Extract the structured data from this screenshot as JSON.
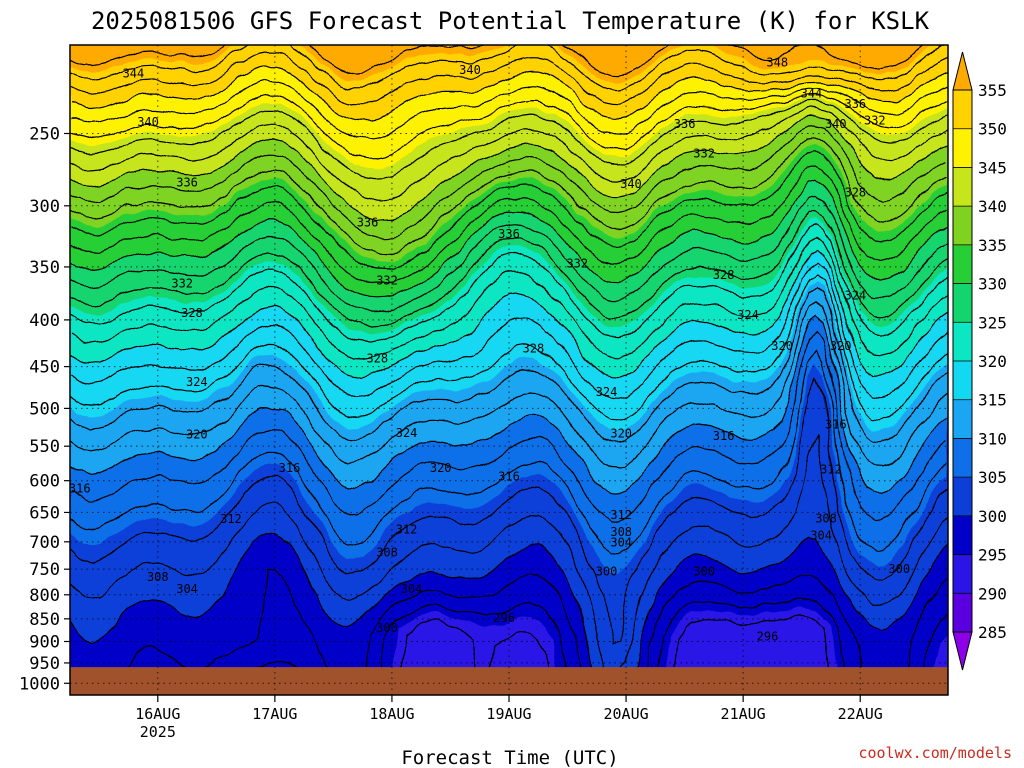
{
  "chart_data": {
    "type": "heatmap",
    "title": "2025081506 GFS Forecast Potential Temperature (K) for KSLK",
    "xlabel": "Forecast Time (UTC)",
    "ylabel": "",
    "credit": "coolwx.com/models",
    "x_ticks": [
      {
        "date": "2025-08-16",
        "label": "16AUG",
        "sublabel": "2025"
      },
      {
        "date": "2025-08-17",
        "label": "17AUG",
        "sublabel": ""
      },
      {
        "date": "2025-08-18",
        "label": "18AUG",
        "sublabel": ""
      },
      {
        "date": "2025-08-19",
        "label": "19AUG",
        "sublabel": ""
      },
      {
        "date": "2025-08-20",
        "label": "20AUG",
        "sublabel": ""
      },
      {
        "date": "2025-08-21",
        "label": "21AUG",
        "sublabel": ""
      },
      {
        "date": "2025-08-22",
        "label": "22AUG",
        "sublabel": ""
      }
    ],
    "xlim": [
      "2025-08-15T06",
      "2025-08-22T18"
    ],
    "y_ticks": [
      250,
      300,
      350,
      400,
      450,
      500,
      550,
      600,
      650,
      700,
      750,
      800,
      850,
      900,
      950,
      1000
    ],
    "ylim": [
      1000,
      200
    ],
    "y_scale": "log",
    "ground_color": "#a0522d",
    "grid": true,
    "colorbar": {
      "levels": [
        285,
        290,
        295,
        300,
        305,
        310,
        315,
        320,
        325,
        330,
        335,
        340,
        345,
        350,
        355
      ],
      "colors": [
        "#8b00e8",
        "#5a00e0",
        "#2a14e6",
        "#0000c8",
        "#0b3fd8",
        "#0f6fe8",
        "#1aa6f2",
        "#12d8f2",
        "#0de6c2",
        "#14d46e",
        "#27cf36",
        "#7fd320",
        "#c6e51a",
        "#fff200",
        "#ffd200",
        "#ffaa00"
      ],
      "extend": "both"
    },
    "contour_labels": [
      {
        "value": "344",
        "date": "2025-08-15T19",
        "p": 215
      },
      {
        "value": "340",
        "date": "2025-08-15T22",
        "p": 243
      },
      {
        "value": "336",
        "date": "2025-08-16T06",
        "p": 283
      },
      {
        "value": "332",
        "date": "2025-08-16T05",
        "p": 365
      },
      {
        "value": "328",
        "date": "2025-08-16T07",
        "p": 393
      },
      {
        "value": "324",
        "date": "2025-08-16T08",
        "p": 468
      },
      {
        "value": "320",
        "date": "2025-08-16T08",
        "p": 534
      },
      {
        "value": "316",
        "date": "2025-08-15T08",
        "p": 612
      },
      {
        "value": "312",
        "date": "2025-08-16T15",
        "p": 661
      },
      {
        "value": "308",
        "date": "2025-08-16T00",
        "p": 765
      },
      {
        "value": "304",
        "date": "2025-08-16T06",
        "p": 788
      },
      {
        "value": "316",
        "date": "2025-08-17T03",
        "p": 581
      },
      {
        "value": "336",
        "date": "2025-08-17T19",
        "p": 313
      },
      {
        "value": "332",
        "date": "2025-08-17T23",
        "p": 362
      },
      {
        "value": "328",
        "date": "2025-08-17T21",
        "p": 441
      },
      {
        "value": "324",
        "date": "2025-08-18T03",
        "p": 532
      },
      {
        "value": "320",
        "date": "2025-08-18T10",
        "p": 581
      },
      {
        "value": "312",
        "date": "2025-08-18T03",
        "p": 679
      },
      {
        "value": "308",
        "date": "2025-08-17T23",
        "p": 719
      },
      {
        "value": "304",
        "date": "2025-08-18T04",
        "p": 788
      },
      {
        "value": "300",
        "date": "2025-08-17T23",
        "p": 870
      },
      {
        "value": "296",
        "date": "2025-08-18T23",
        "p": 848
      },
      {
        "value": "340",
        "date": "2025-08-18T16",
        "p": 213
      },
      {
        "value": "336",
        "date": "2025-08-19T00",
        "p": 322
      },
      {
        "value": "328",
        "date": "2025-08-19T05",
        "p": 430
      },
      {
        "value": "332",
        "date": "2025-08-19T14",
        "p": 347
      },
      {
        "value": "324",
        "date": "2025-08-19T20",
        "p": 480
      },
      {
        "value": "316",
        "date": "2025-08-19T00",
        "p": 594
      },
      {
        "value": "320",
        "date": "2025-08-19T23",
        "p": 533
      },
      {
        "value": "300",
        "date": "2025-08-19T20",
        "p": 754
      },
      {
        "value": "312",
        "date": "2025-08-19T23",
        "p": 654
      },
      {
        "value": "308",
        "date": "2025-08-19T23",
        "p": 683
      },
      {
        "value": "304",
        "date": "2025-08-19T23",
        "p": 701
      },
      {
        "value": "340",
        "date": "2025-08-20T01",
        "p": 284
      },
      {
        "value": "336",
        "date": "2025-08-20T12",
        "p": 244
      },
      {
        "value": "332",
        "date": "2025-08-20T16",
        "p": 263
      },
      {
        "value": "328",
        "date": "2025-08-20T20",
        "p": 357
      },
      {
        "value": "324",
        "date": "2025-08-21T01",
        "p": 395
      },
      {
        "value": "316",
        "date": "2025-08-20T20",
        "p": 536
      },
      {
        "value": "300",
        "date": "2025-08-20T16",
        "p": 754
      },
      {
        "value": "296",
        "date": "2025-08-21T05",
        "p": 889
      },
      {
        "value": "348",
        "date": "2025-08-21T07",
        "p": 209
      },
      {
        "value": "344",
        "date": "2025-08-21T14",
        "p": 226
      },
      {
        "value": "340",
        "date": "2025-08-21T19",
        "p": 244
      },
      {
        "value": "336",
        "date": "2025-08-21T23",
        "p": 232
      },
      {
        "value": "332",
        "date": "2025-08-22T03",
        "p": 242
      },
      {
        "value": "328",
        "date": "2025-08-21T23",
        "p": 290
      },
      {
        "value": "324",
        "date": "2025-08-21T23",
        "p": 376
      },
      {
        "value": "320",
        "date": "2025-08-21T08",
        "p": 427
      },
      {
        "value": "320",
        "date": "2025-08-21T20",
        "p": 427
      },
      {
        "value": "316",
        "date": "2025-08-21T19",
        "p": 521
      },
      {
        "value": "312",
        "date": "2025-08-21T18",
        "p": 583
      },
      {
        "value": "308",
        "date": "2025-08-21T17",
        "p": 660
      },
      {
        "value": "304",
        "date": "2025-08-21T16",
        "p": 689
      },
      {
        "value": "300",
        "date": "2025-08-22T08",
        "p": 750
      }
    ]
  }
}
